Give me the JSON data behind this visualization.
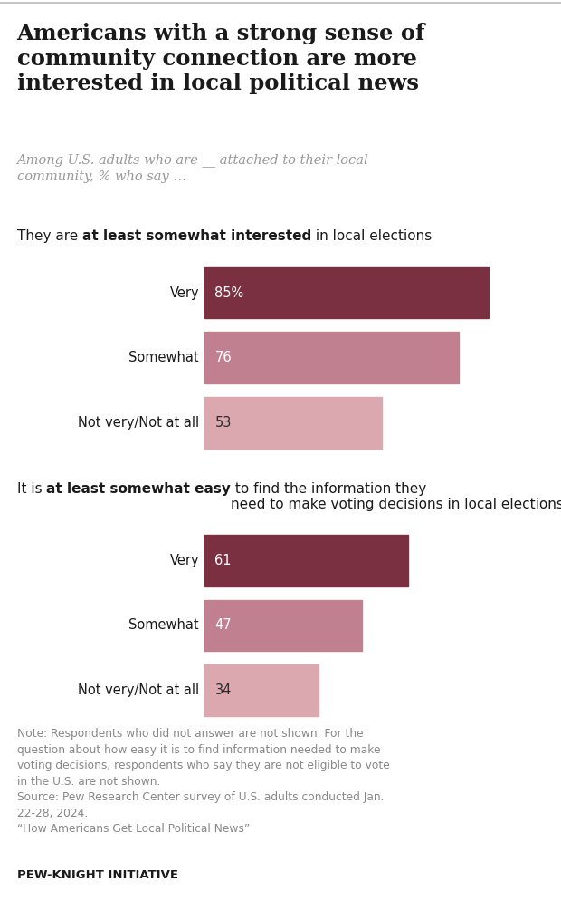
{
  "title": "Americans with a strong sense of\ncommunity connection are more\ninterested in local political news",
  "subtitle": "Among U.S. adults who are __ attached to their local\ncommunity, % who say …",
  "section1_header_parts": [
    [
      "They are ",
      false
    ],
    [
      "at least somewhat interested",
      true
    ],
    [
      " in local elections",
      false
    ]
  ],
  "section1_categories": [
    "Very",
    "Somewhat",
    "Not very/Not at all"
  ],
  "section1_values": [
    85,
    76,
    53
  ],
  "section1_colors": [
    "#7a3040",
    "#c08090",
    "#dba8b0"
  ],
  "section1_label_colors": [
    "#ffffff",
    "#ffffff",
    "#2b2b2b"
  ],
  "section1_pct_symbol": [
    "85%",
    "76",
    "53"
  ],
  "section2_header_parts": [
    [
      "It is ",
      false
    ],
    [
      "at least somewhat easy",
      true
    ],
    [
      " to find the information they\nneed to make voting decisions in local elections",
      false
    ]
  ],
  "section2_categories": [
    "Very",
    "Somewhat",
    "Not very/Not at all"
  ],
  "section2_values": [
    61,
    47,
    34
  ],
  "section2_colors": [
    "#7a3040",
    "#c08090",
    "#dba8b0"
  ],
  "section2_label_colors": [
    "#ffffff",
    "#ffffff",
    "#2b2b2b"
  ],
  "section2_pct_symbol": [
    "61",
    "47",
    "34"
  ],
  "note": "Note: Respondents who did not answer are not shown. For the\nquestion about how easy it is to find information needed to make\nvoting decisions, respondents who say they are not eligible to vote\nin the U.S. are not shown.\nSource: Pew Research Center survey of U.S. adults conducted Jan.\n22-28, 2024.\n“How Americans Get Local Political News”",
  "footer": "PEW-KNIGHT INITIATIVE",
  "bg_color": "#ffffff",
  "max_value": 100
}
